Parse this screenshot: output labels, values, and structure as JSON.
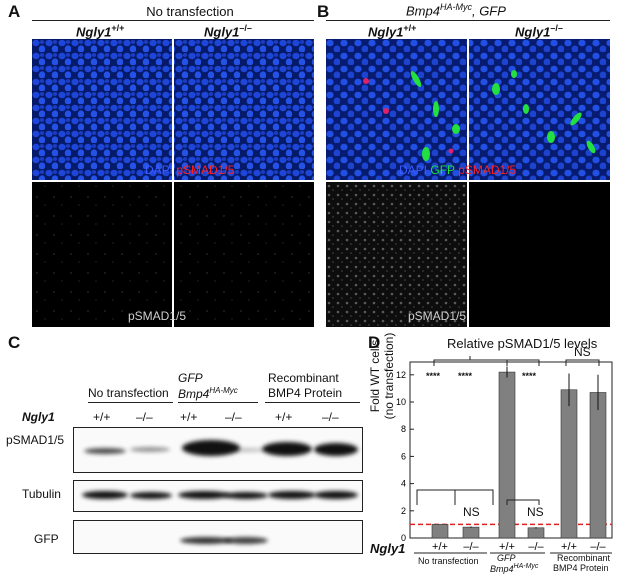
{
  "panels": {
    "A": {
      "letter": "A",
      "header": "No transfection",
      "genotypes": [
        "Ngly1",
        "+/+",
        "Ngly1",
        "–/–"
      ],
      "top_label": {
        "dapi": "DAPI",
        "marker": "pSMAD1/5"
      },
      "bottom_label": "pSMAD1/5"
    },
    "B": {
      "letter": "B",
      "header_gene": "Bmp4",
      "header_sup": "HA-Myc",
      "header_rest": ", GFP",
      "genotypes": [
        "Ngly1",
        "+/+",
        "Ngly1",
        "–/–"
      ],
      "top_label": {
        "dapi": "DAPI",
        "gfp": "GFP",
        "marker": "pSMAD1/5"
      },
      "bottom_label": "pSMAD1/5"
    },
    "C": {
      "letter": "C",
      "groups": [
        {
          "line1": "No transfection",
          "line2": ""
        },
        {
          "line1": "GFP",
          "line2_gene": "Bmp4",
          "line2_sup": "HA-Myc"
        },
        {
          "line1": "Recombinant",
          "line2": "BMP4 Protein"
        }
      ],
      "row_gene": "Ngly1",
      "lanes": [
        "+/+",
        "–/–",
        "+/+",
        "–/–",
        "+/+",
        "–/–"
      ],
      "blots": [
        "pSMAD1/5",
        "Tubulin",
        "GFP"
      ]
    },
    "D": {
      "letter": "D",
      "title": "Relative pSMAD1/5 levels",
      "ylabel_line1": "Fold WT cells",
      "ylabel_line2": "(no transfection)",
      "row_gene": "Ngly1",
      "sig": [
        "****",
        "****",
        "****",
        "NS",
        "NS",
        "NS"
      ],
      "groups": [
        {
          "line1": "No transfection",
          "line2": ""
        },
        {
          "line1": "GFP",
          "line2_gene": "Bmp4",
          "line2_sup": "HA-Myc"
        },
        {
          "line1": "Recombinant",
          "line2": "BMP4 Protein"
        }
      ]
    }
  },
  "chart_data": {
    "type": "bar",
    "title": "Relative pSMAD1/5 levels",
    "ylabel": "Fold WT cells (no transfection)",
    "xlabel": "Ngly1",
    "categories": [
      "+/+",
      "–/–",
      "+/+",
      "–/–",
      "+/+",
      "–/–"
    ],
    "values": [
      1.0,
      0.8,
      12.2,
      0.75,
      10.9,
      10.7
    ],
    "errors": [
      0.0,
      0.05,
      0.4,
      0.05,
      1.2,
      1.3
    ],
    "ylim": [
      0,
      12.5
    ],
    "yticks": [
      0,
      2,
      4,
      6,
      8,
      10,
      12
    ],
    "reference_line": 1,
    "bar_color": "#808080",
    "reference_color": "#e02020"
  }
}
